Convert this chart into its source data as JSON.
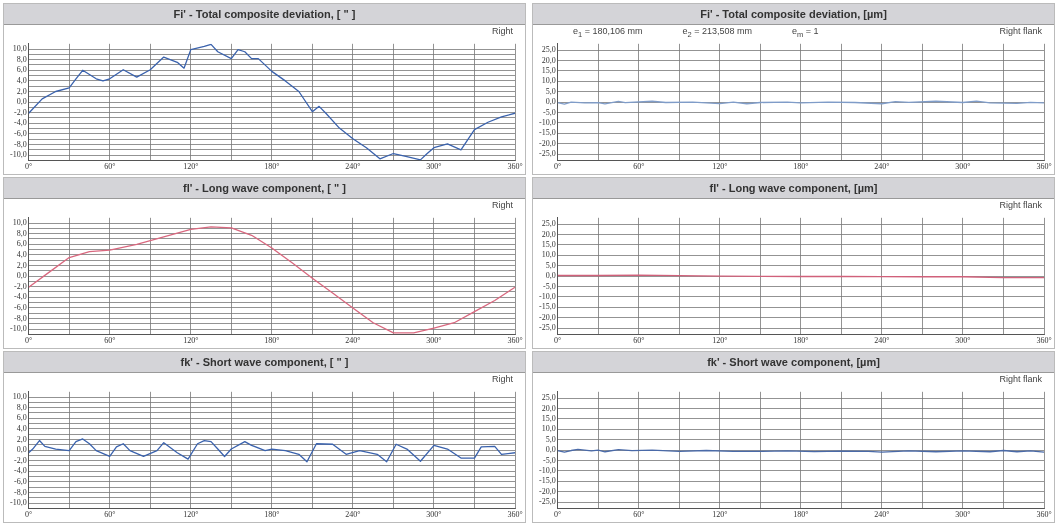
{
  "chart_data": [
    {
      "type": "line",
      "title": "Fi' - Total composite deviation, [ \" ]",
      "annotations": [
        "Right"
      ],
      "color": "#3a62ad",
      "marker": "none",
      "line_style": "solid",
      "grid": true,
      "xlim": [
        0,
        360
      ],
      "ylim": [
        -11,
        11
      ],
      "xticks": [
        {
          "value": 0,
          "label": "0°"
        },
        {
          "value": 30,
          "label": null
        },
        {
          "value": 60,
          "label": "60°"
        },
        {
          "value": 90,
          "label": null
        },
        {
          "value": 120,
          "label": "120°"
        },
        {
          "value": 150,
          "label": null
        },
        {
          "value": 180,
          "label": "180°"
        },
        {
          "value": 210,
          "label": null
        },
        {
          "value": 240,
          "label": "240°"
        },
        {
          "value": 270,
          "label": null
        },
        {
          "value": 300,
          "label": "300°"
        },
        {
          "value": 330,
          "label": null
        },
        {
          "value": 360,
          "label": "360°"
        }
      ],
      "yticks": [
        {
          "value": -10,
          "label": "-10,0"
        },
        {
          "value": -9,
          "label": null
        },
        {
          "value": -8,
          "label": "-8,0"
        },
        {
          "value": -7,
          "label": null
        },
        {
          "value": -6,
          "label": "-6,0"
        },
        {
          "value": -5,
          "label": null
        },
        {
          "value": -4,
          "label": "-4,0"
        },
        {
          "value": -3,
          "label": null
        },
        {
          "value": -2,
          "label": "-2,0"
        },
        {
          "value": -1,
          "label": null
        },
        {
          "value": 0,
          "label": "0,0"
        },
        {
          "value": 1,
          "label": null
        },
        {
          "value": 2,
          "label": "2,0"
        },
        {
          "value": 3,
          "label": null
        },
        {
          "value": 4,
          "label": "4,0"
        },
        {
          "value": 5,
          "label": null
        },
        {
          "value": 6,
          "label": "6,0"
        },
        {
          "value": 7,
          "label": null
        },
        {
          "value": 8,
          "label": "8,0"
        },
        {
          "value": 9,
          "label": null
        },
        {
          "value": 10,
          "label": "10,0"
        }
      ],
      "x": [
        0,
        10,
        20,
        30,
        35,
        40,
        50,
        55,
        60,
        70,
        80,
        90,
        100,
        110,
        115,
        120,
        130,
        135,
        140,
        150,
        155,
        160,
        165,
        170,
        180,
        190,
        200,
        210,
        215,
        220,
        230,
        240,
        250,
        260,
        270,
        280,
        290,
        295,
        300,
        310,
        320,
        330,
        340,
        350,
        360
      ],
      "values": [
        -2.1,
        0.6,
        2.0,
        2.7,
        4.4,
        6.0,
        4.4,
        4.0,
        4.4,
        6.1,
        4.7,
        6.1,
        8.5,
        7.5,
        6.4,
        9.9,
        10.5,
        10.9,
        9.5,
        8.2,
        9.9,
        9.5,
        8.2,
        8.2,
        5.8,
        4.0,
        2.0,
        -1.8,
        -0.8,
        -2.1,
        -4.9,
        -6.9,
        -8.6,
        -10.7,
        -9.7,
        -10.3,
        -10.9,
        -9.7,
        -8.6,
        -7.9,
        -9.0,
        -5.2,
        -3.8,
        -2.8,
        -2.1
      ]
    },
    {
      "type": "line",
      "title": "Fi' - Total composite deviation, [µm]",
      "annotations": [
        "e$_{1}$ = 180,106 mm",
        "e$_{2}$ = 213,508 mm",
        "e$_{m}$ = 1",
        "Right flank"
      ],
      "color": "#7f9cc8",
      "marker": "none",
      "line_style": "solid",
      "grid": true,
      "xlim": [
        0,
        360
      ],
      "ylim": [
        -28,
        28
      ],
      "xticks": [
        {
          "value": 0,
          "label": "0°"
        },
        {
          "value": 30,
          "label": null
        },
        {
          "value": 60,
          "label": "60°"
        },
        {
          "value": 90,
          "label": null
        },
        {
          "value": 120,
          "label": "120°"
        },
        {
          "value": 150,
          "label": null
        },
        {
          "value": 180,
          "label": "180°"
        },
        {
          "value": 210,
          "label": null
        },
        {
          "value": 240,
          "label": "240°"
        },
        {
          "value": 270,
          "label": null
        },
        {
          "value": 300,
          "label": "300°"
        },
        {
          "value": 330,
          "label": null
        },
        {
          "value": 360,
          "label": "360°"
        }
      ],
      "yticks": [
        {
          "value": -25,
          "label": "-25,0"
        },
        {
          "value": -20,
          "label": "-20,0"
        },
        {
          "value": -15,
          "label": "-15,0"
        },
        {
          "value": -10,
          "label": "-10,0"
        },
        {
          "value": -5,
          "label": "-5,0"
        },
        {
          "value": 0,
          "label": "0,0"
        },
        {
          "value": 5,
          "label": "5,0"
        },
        {
          "value": 10,
          "label": "10,0"
        },
        {
          "value": 15,
          "label": "15,0"
        },
        {
          "value": 20,
          "label": "20,0"
        },
        {
          "value": 25,
          "label": "25,0"
        }
      ],
      "x": [
        0,
        5,
        10,
        20,
        30,
        35,
        45,
        50,
        70,
        80,
        100,
        120,
        130,
        140,
        150,
        170,
        180,
        200,
        220,
        240,
        250,
        260,
        280,
        300,
        310,
        320,
        340,
        350,
        360
      ],
      "values": [
        -0.3,
        -1.0,
        0.0,
        -0.4,
        -0.3,
        -0.9,
        0.3,
        -0.3,
        0.4,
        -0.2,
        0.0,
        -0.7,
        0.0,
        -0.8,
        -0.2,
        0.0,
        -0.4,
        0.0,
        -0.2,
        -0.8,
        0.2,
        -0.1,
        0.4,
        -0.2,
        0.5,
        -0.4,
        -0.6,
        -0.1,
        -0.4
      ]
    },
    {
      "type": "line",
      "title": "fl' - Long wave component, [ \" ]",
      "annotations": [
        "Right"
      ],
      "color": "#d9687f",
      "marker": "none",
      "line_style": "solid",
      "grid": true,
      "xlim": [
        0,
        360
      ],
      "ylim": [
        -11,
        11
      ],
      "xticks": [
        {
          "value": 0,
          "label": "0°"
        },
        {
          "value": 30,
          "label": null
        },
        {
          "value": 60,
          "label": "60°"
        },
        {
          "value": 90,
          "label": null
        },
        {
          "value": 120,
          "label": "120°"
        },
        {
          "value": 150,
          "label": null
        },
        {
          "value": 180,
          "label": "180°"
        },
        {
          "value": 210,
          "label": null
        },
        {
          "value": 240,
          "label": "240°"
        },
        {
          "value": 270,
          "label": null
        },
        {
          "value": 300,
          "label": "300°"
        },
        {
          "value": 330,
          "label": null
        },
        {
          "value": 360,
          "label": "360°"
        }
      ],
      "yticks": [
        {
          "value": -10,
          "label": "-10,0"
        },
        {
          "value": -9,
          "label": null
        },
        {
          "value": -8,
          "label": "-8,0"
        },
        {
          "value": -7,
          "label": null
        },
        {
          "value": -6,
          "label": "-6,0"
        },
        {
          "value": -5,
          "label": null
        },
        {
          "value": -4,
          "label": "-4,0"
        },
        {
          "value": -3,
          "label": null
        },
        {
          "value": -2,
          "label": "-2,0"
        },
        {
          "value": -1,
          "label": null
        },
        {
          "value": 0,
          "label": "0,0"
        },
        {
          "value": 1,
          "label": null
        },
        {
          "value": 2,
          "label": "2,0"
        },
        {
          "value": 3,
          "label": null
        },
        {
          "value": 4,
          "label": "4,0"
        },
        {
          "value": 5,
          "label": null
        },
        {
          "value": 6,
          "label": "6,0"
        },
        {
          "value": 7,
          "label": null
        },
        {
          "value": 8,
          "label": "8,0"
        },
        {
          "value": 9,
          "label": null
        },
        {
          "value": 10,
          "label": "10,0"
        }
      ],
      "x": [
        0,
        15,
        30,
        45,
        60,
        80,
        100,
        120,
        135,
        150,
        165,
        180,
        195,
        210,
        225,
        240,
        255,
        270,
        285,
        300,
        315,
        330,
        345,
        360
      ],
      "values": [
        -2.1,
        0.7,
        3.5,
        4.6,
        4.9,
        6.0,
        7.4,
        8.8,
        9.3,
        9.1,
        7.7,
        5.3,
        2.5,
        -0.4,
        -3.2,
        -6.0,
        -8.8,
        -10.7,
        -10.7,
        -9.8,
        -8.8,
        -6.7,
        -4.6,
        -2.1
      ]
    },
    {
      "type": "line",
      "title": "fl' - Long wave component, [µm]",
      "annotations": [
        "Right flank"
      ],
      "color": "#d0607a",
      "marker": "none",
      "line_style": "solid",
      "grid": true,
      "xlim": [
        0,
        360
      ],
      "ylim": [
        -28,
        28
      ],
      "xticks": [
        {
          "value": 0,
          "label": "0°"
        },
        {
          "value": 30,
          "label": null
        },
        {
          "value": 60,
          "label": "60°"
        },
        {
          "value": 90,
          "label": null
        },
        {
          "value": 120,
          "label": "120°"
        },
        {
          "value": 150,
          "label": null
        },
        {
          "value": 180,
          "label": "180°"
        },
        {
          "value": 210,
          "label": null
        },
        {
          "value": 240,
          "label": "240°"
        },
        {
          "value": 270,
          "label": null
        },
        {
          "value": 300,
          "label": "300°"
        },
        {
          "value": 330,
          "label": null
        },
        {
          "value": 360,
          "label": "360°"
        }
      ],
      "yticks": [
        {
          "value": -25,
          "label": "-25,0"
        },
        {
          "value": -20,
          "label": "-20,0"
        },
        {
          "value": -15,
          "label": "-15,0"
        },
        {
          "value": -10,
          "label": "-10,0"
        },
        {
          "value": -5,
          "label": "-5,0"
        },
        {
          "value": 0,
          "label": "0,0"
        },
        {
          "value": 5,
          "label": "5,0"
        },
        {
          "value": 10,
          "label": "10,0"
        },
        {
          "value": 15,
          "label": "15,0"
        },
        {
          "value": 20,
          "label": "20,0"
        },
        {
          "value": 25,
          "label": "25,0"
        }
      ],
      "x": [
        0,
        30,
        60,
        90,
        120,
        150,
        180,
        210,
        240,
        270,
        300,
        330,
        360
      ],
      "values": [
        0.3,
        0.3,
        0.5,
        0.2,
        0.0,
        -0.1,
        -0.2,
        -0.2,
        -0.3,
        -0.3,
        -0.3,
        -0.7,
        -0.7
      ]
    },
    {
      "type": "line",
      "title": "fk' - Short wave component, [ \" ]",
      "annotations": [
        "Right"
      ],
      "color": "#3a62ad",
      "marker": "none",
      "line_style": "solid",
      "grid": true,
      "xlim": [
        0,
        360
      ],
      "ylim": [
        -11,
        11
      ],
      "xticks": [
        {
          "value": 0,
          "label": "0°"
        },
        {
          "value": 30,
          "label": null
        },
        {
          "value": 60,
          "label": "60°"
        },
        {
          "value": 90,
          "label": null
        },
        {
          "value": 120,
          "label": "120°"
        },
        {
          "value": 150,
          "label": null
        },
        {
          "value": 180,
          "label": "180°"
        },
        {
          "value": 210,
          "label": null
        },
        {
          "value": 240,
          "label": "240°"
        },
        {
          "value": 270,
          "label": null
        },
        {
          "value": 300,
          "label": "300°"
        },
        {
          "value": 330,
          "label": null
        },
        {
          "value": 360,
          "label": "360°"
        }
      ],
      "yticks": [
        {
          "value": -10,
          "label": "-10,0"
        },
        {
          "value": -9,
          "label": null
        },
        {
          "value": -8,
          "label": "-8,0"
        },
        {
          "value": -7,
          "label": null
        },
        {
          "value": -6,
          "label": "-6,0"
        },
        {
          "value": -5,
          "label": null
        },
        {
          "value": -4,
          "label": "-4,0"
        },
        {
          "value": -3,
          "label": null
        },
        {
          "value": -2,
          "label": "-2,0"
        },
        {
          "value": -1,
          "label": null
        },
        {
          "value": 0,
          "label": "0,0"
        },
        {
          "value": 1,
          "label": null
        },
        {
          "value": 2,
          "label": "2,0"
        },
        {
          "value": 3,
          "label": null
        },
        {
          "value": 4,
          "label": "4,0"
        },
        {
          "value": 5,
          "label": null
        },
        {
          "value": 6,
          "label": "6,0"
        },
        {
          "value": 7,
          "label": null
        },
        {
          "value": 8,
          "label": "8,0"
        },
        {
          "value": 9,
          "label": null
        },
        {
          "value": 10,
          "label": "10,0"
        }
      ],
      "x": [
        0,
        3,
        8,
        12,
        20,
        30,
        35,
        40,
        45,
        50,
        60,
        65,
        70,
        75,
        85,
        95,
        100,
        110,
        118,
        125,
        130,
        135,
        140,
        145,
        150,
        160,
        165,
        175,
        180,
        190,
        200,
        206,
        213,
        225,
        235,
        245,
        258,
        265,
        272,
        280,
        290,
        300,
        310,
        320,
        330,
        335,
        345,
        350,
        360
      ],
      "values": [
        -0.5,
        0.2,
        1.8,
        0.7,
        0.2,
        -0.1,
        1.6,
        2.1,
        1.2,
        -0.1,
        -1.2,
        0.6,
        1.2,
        -0.1,
        -1.2,
        -0.1,
        1.4,
        -0.5,
        -1.7,
        1.2,
        1.8,
        1.6,
        0.2,
        -1.2,
        0.2,
        1.6,
        0.9,
        -0.1,
        0.2,
        -0.1,
        -0.8,
        -2.2,
        1.2,
        1.1,
        -0.8,
        -0.1,
        -0.8,
        -2.2,
        1.1,
        0.2,
        -2.1,
        0.9,
        0.2,
        -1.5,
        -1.5,
        0.6,
        0.7,
        -0.8,
        -0.5
      ]
    },
    {
      "type": "line",
      "title": "fk' - Short wave component, [µm]",
      "annotations": [
        "Right flank"
      ],
      "color": "#4a6aa8",
      "marker": "none",
      "line_style": "solid",
      "grid": true,
      "xlim": [
        0,
        360
      ],
      "ylim": [
        -28,
        28
      ],
      "xticks": [
        {
          "value": 0,
          "label": "0°"
        },
        {
          "value": 30,
          "label": null
        },
        {
          "value": 60,
          "label": "60°"
        },
        {
          "value": 90,
          "label": null
        },
        {
          "value": 120,
          "label": "120°"
        },
        {
          "value": 150,
          "label": null
        },
        {
          "value": 180,
          "label": "180°"
        },
        {
          "value": 210,
          "label": null
        },
        {
          "value": 240,
          "label": "240°"
        },
        {
          "value": 270,
          "label": null
        },
        {
          "value": 300,
          "label": "300°"
        },
        {
          "value": 330,
          "label": null
        },
        {
          "value": 360,
          "label": "360°"
        }
      ],
      "yticks": [
        {
          "value": -25,
          "label": "-25,0"
        },
        {
          "value": -20,
          "label": "-20,0"
        },
        {
          "value": -15,
          "label": "-15,0"
        },
        {
          "value": -10,
          "label": "-10,0"
        },
        {
          "value": -5,
          "label": "-5,0"
        },
        {
          "value": 0,
          "label": "0,0"
        },
        {
          "value": 5,
          "label": "5,0"
        },
        {
          "value": 10,
          "label": "10,0"
        },
        {
          "value": 15,
          "label": "15,0"
        },
        {
          "value": 20,
          "label": "20,0"
        },
        {
          "value": 25,
          "label": "25,0"
        }
      ],
      "x": [
        0,
        5,
        10,
        15,
        25,
        30,
        35,
        45,
        55,
        70,
        90,
        110,
        130,
        150,
        170,
        190,
        210,
        230,
        240,
        260,
        280,
        300,
        320,
        330,
        340,
        350,
        360
      ],
      "values": [
        -0.3,
        -1.0,
        -0.2,
        0.3,
        -0.4,
        0.0,
        -0.8,
        0.2,
        -0.3,
        0.0,
        -0.6,
        -0.2,
        -0.6,
        -0.6,
        -0.4,
        -0.7,
        -0.5,
        -0.6,
        -1.0,
        -0.4,
        -0.8,
        -0.4,
        -0.8,
        -0.2,
        -0.8,
        -0.4,
        -1.0
      ]
    }
  ]
}
